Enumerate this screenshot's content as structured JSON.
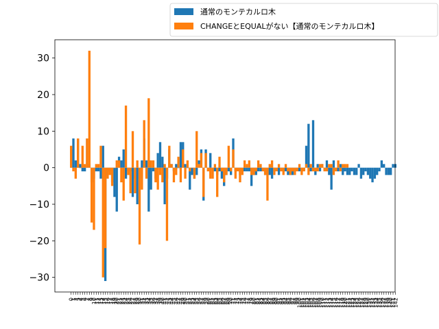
{
  "chart_data": {
    "type": "bar",
    "title": "",
    "xlabel": "",
    "ylabel": "",
    "ylim": [
      -34,
      35
    ],
    "yticks": [
      -30,
      -20,
      -10,
      0,
      10,
      20,
      30
    ],
    "grid": false,
    "legend_position": "top-right, outside the plot",
    "colors": {
      "series0": "#1f77b4",
      "series1": "#ff7f0e"
    },
    "series": [
      {
        "name": "通常のモンテカルロ木",
        "values": [
          5,
          8,
          2,
          8,
          1,
          -1,
          -1,
          8,
          1,
          -4,
          -3,
          -1,
          -1,
          -3,
          6,
          -31,
          -2,
          -1,
          -4,
          -8,
          -12,
          3,
          2,
          5,
          -3,
          -1,
          -1,
          -8,
          -3,
          -10,
          -3,
          2,
          8,
          2,
          -12,
          -6,
          -1,
          -3,
          4,
          7,
          3,
          -10,
          -3,
          5,
          1,
          -1,
          1,
          0,
          7,
          7,
          1,
          0,
          -6,
          -2,
          -3,
          -2,
          2,
          5,
          -9,
          5,
          -1,
          4,
          -1,
          -1,
          -2,
          -1,
          -3,
          -5,
          -2,
          -1,
          -2,
          8,
          -1,
          -1,
          -2,
          -1,
          -1,
          -1,
          -1,
          -5,
          -2,
          -2,
          -1,
          -1,
          -1,
          -2,
          -2,
          -2,
          -3,
          -1,
          -1,
          -2,
          -1,
          -1,
          -1,
          -2,
          -2,
          -2,
          -1,
          -1,
          -1,
          -1,
          -1,
          6,
          12,
          -1,
          13,
          -2,
          1,
          -1,
          1,
          -1,
          2,
          -2,
          -6,
          2,
          -1,
          -1,
          1,
          -2,
          -1,
          -2,
          -2,
          -1,
          -2,
          -2,
          1,
          -3,
          -2,
          -1,
          -2,
          -3,
          -4,
          -3,
          -2,
          -1,
          2,
          1,
          -2,
          -2,
          -2,
          1,
          1
        ]
      },
      {
        "name": "CHANGEとEQUALがない【通常のモンテカルロ木】",
        "values": [
          6,
          -1,
          -3,
          8,
          0,
          6,
          1,
          8,
          32,
          -15,
          -17,
          1,
          1,
          6,
          -30,
          -22,
          -3,
          -2,
          -5,
          0,
          2,
          2,
          -4,
          -9,
          17,
          -2,
          -7,
          10,
          -7,
          2,
          -21,
          -6,
          13,
          -3,
          19,
          2,
          2,
          -4,
          -6,
          -2,
          -4,
          1,
          -20,
          6,
          1,
          -4,
          -2,
          3,
          -4,
          5,
          -3,
          2,
          -1,
          0,
          -3,
          10,
          1,
          4,
          -8,
          4,
          -1,
          -3,
          -3,
          1,
          -8,
          3,
          -1,
          -4,
          -2,
          6,
          -1,
          5,
          -3,
          -1,
          -4,
          -2,
          2,
          1,
          2,
          -2,
          -2,
          -1,
          2,
          1,
          -1,
          -2,
          -9,
          1,
          2,
          -2,
          -1,
          1,
          -1,
          -2,
          1,
          -1,
          -2,
          -1,
          -2,
          -1,
          1,
          -2,
          -1,
          1,
          -2,
          1,
          -1,
          -1,
          -1,
          1,
          1,
          -1,
          -1,
          1,
          1,
          -2,
          -1,
          2,
          -1,
          1,
          1,
          1
        ]
      }
    ]
  }
}
